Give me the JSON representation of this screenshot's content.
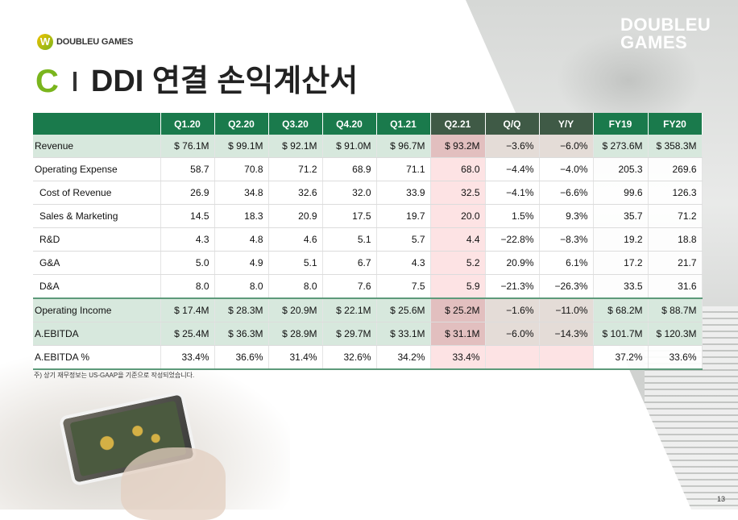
{
  "header": {
    "logo_left_text": "DOUBLEU GAMES",
    "logo_left_mark": "W",
    "logo_right_line1": "DOUBLEU",
    "logo_right_line2": "GAMES"
  },
  "title": {
    "section_letter": "C",
    "text": "DDI 연결 손익계산서"
  },
  "colors": {
    "accent_green": "#7ab51d",
    "header_green": "#1a7a4c",
    "header_dark": "#3f5a46",
    "row_green": "#d7e8dd",
    "highlight_pink": "#fde3e4"
  },
  "table": {
    "columns": [
      "",
      "Q1.20",
      "Q2.20",
      "Q3.20",
      "Q4.20",
      "Q1.21",
      "Q2.21",
      "Q/Q",
      "Y/Y",
      "FY19",
      "FY20"
    ],
    "rows": [
      {
        "label": "Revenue",
        "values": [
          "$ 76.1M",
          "$ 99.1M",
          "$ 92.1M",
          "$ 91.0M",
          "$ 96.7M",
          "$ 93.2M",
          "−3.6%",
          "−6.0%",
          "$ 273.6M",
          "$ 358.3M"
        ]
      },
      {
        "label": "Operating Expense",
        "values": [
          "58.7",
          "70.8",
          "71.2",
          "68.9",
          "71.1",
          "68.0",
          "−4.4%",
          "−4.0%",
          "205.3",
          "269.6"
        ]
      },
      {
        "label": "Cost of Revenue",
        "values": [
          "26.9",
          "34.8",
          "32.6",
          "32.0",
          "33.9",
          "32.5",
          "−4.1%",
          "−6.6%",
          "99.6",
          "126.3"
        ]
      },
      {
        "label": "Sales & Marketing",
        "values": [
          "14.5",
          "18.3",
          "20.9",
          "17.5",
          "19.7",
          "20.0",
          "1.5%",
          "9.3%",
          "35.7",
          "71.2"
        ]
      },
      {
        "label": "R&D",
        "values": [
          "4.3",
          "4.8",
          "4.6",
          "5.1",
          "5.7",
          "4.4",
          "−22.8%",
          "−8.3%",
          "19.2",
          "18.8"
        ]
      },
      {
        "label": "G&A",
        "values": [
          "5.0",
          "4.9",
          "5.1",
          "6.7",
          "4.3",
          "5.2",
          "20.9%",
          "6.1%",
          "17.2",
          "21.7"
        ]
      },
      {
        "label": "D&A",
        "values": [
          "8.0",
          "8.0",
          "8.0",
          "7.6",
          "7.5",
          "5.9",
          "−21.3%",
          "−26.3%",
          "33.5",
          "31.6"
        ]
      },
      {
        "label": "Operating Income",
        "values": [
          "$ 17.4M",
          "$ 28.3M",
          "$ 20.9M",
          "$ 22.1M",
          "$ 25.6M",
          "$ 25.2M",
          "−1.6%",
          "−11.0%",
          "$ 68.2M",
          "$ 88.7M"
        ]
      },
      {
        "label": "A.EBITDA",
        "values": [
          "$ 25.4M",
          "$ 36.3M",
          "$ 28.9M",
          "$ 29.7M",
          "$ 33.1M",
          "$ 31.1M",
          "−6.0%",
          "−14.3%",
          "$ 101.7M",
          "$ 120.3M"
        ]
      },
      {
        "label": "A.EBITDA %",
        "values": [
          "33.4%",
          "36.6%",
          "31.4%",
          "32.6%",
          "34.2%",
          "33.4%",
          "",
          "",
          "37.2%",
          "33.6%"
        ]
      }
    ]
  },
  "footnote": "주) 상기 재무정보는 US-GAAP을 기준으로 작성되었습니다.",
  "page_number": "13"
}
